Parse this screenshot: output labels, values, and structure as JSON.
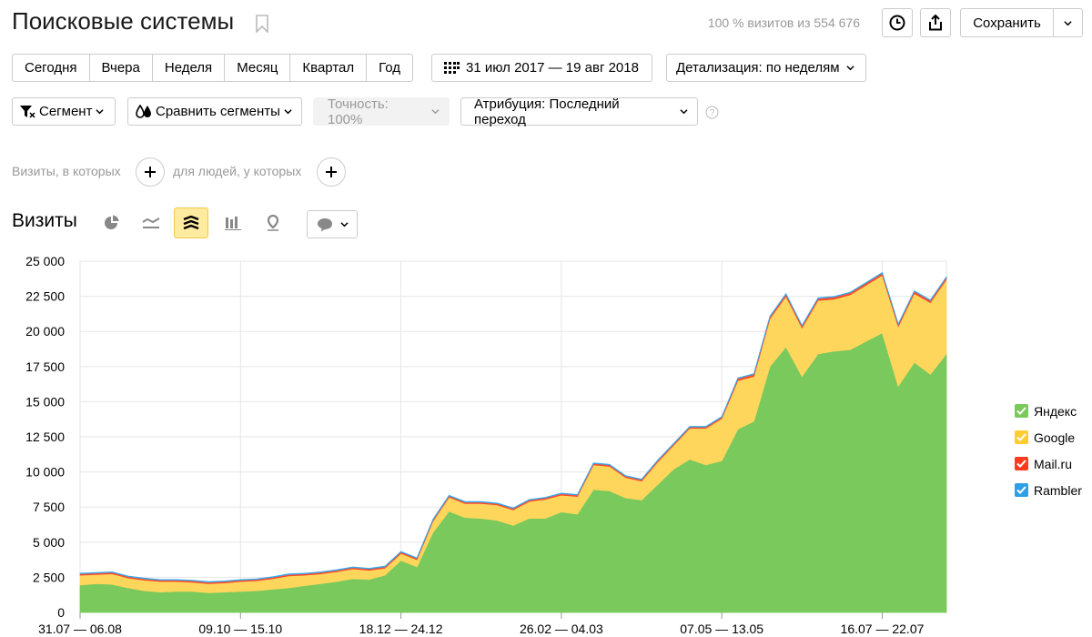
{
  "header": {
    "title": "Поисковые системы",
    "visits_info": "100 % визитов из 554 676",
    "save_label": "Сохранить"
  },
  "period_buttons": [
    "Сегодня",
    "Вчера",
    "Неделя",
    "Месяц",
    "Квартал",
    "Год"
  ],
  "date_range": "31 июл 2017 — 19 авг 2018",
  "detail": "Детализация: по неделям",
  "segment": "Сегмент",
  "compare_segments": "Сравнить сегменты",
  "accuracy": "Точность: 100%",
  "attribution": "Атрибуция: Последний переход",
  "filters": {
    "visits_which": "Визиты, в которых",
    "people_which": "для людей, у которых"
  },
  "chart_section_title": "Визиты",
  "colors": {
    "Яндекс": "#7ac95c",
    "Google": "#ffd65c",
    "Mail.ru": "#ff4b2b",
    "Rambler": "#36a9ee"
  },
  "chart_data": {
    "type": "area",
    "stacked": true,
    "title": "Визиты",
    "x_tick_labels": [
      "31.07 — 06.08",
      "09.10 — 15.10",
      "18.12 — 24.12",
      "26.02 — 04.03",
      "07.05 — 13.05",
      "16.07 — 22.07"
    ],
    "x_tick_index": [
      0,
      10,
      20,
      30,
      40,
      50
    ],
    "ylim": [
      0,
      25000
    ],
    "y_ticks": [
      "0",
      "2 500",
      "5 000",
      "7 500",
      "10 000",
      "12 500",
      "15 000",
      "17 500",
      "20 000",
      "22 500",
      "25 000"
    ],
    "grid": true,
    "legend_position": "right",
    "series": [
      {
        "name": "Яндекс",
        "color": "#7ac95c",
        "values": [
          1950,
          2050,
          2000,
          1750,
          1550,
          1450,
          1500,
          1500,
          1400,
          1450,
          1500,
          1550,
          1650,
          1750,
          1900,
          2050,
          2200,
          2400,
          2350,
          2650,
          3700,
          3250,
          5700,
          7200,
          6750,
          6700,
          6550,
          6200,
          6700,
          6700,
          7150,
          7000,
          8750,
          8650,
          8150,
          8000,
          9100,
          10200,
          10900,
          10500,
          10800,
          13050,
          13600,
          17500,
          18900,
          16800,
          18400,
          18600,
          18700,
          19300,
          19900,
          16100,
          17800,
          16950,
          18400
        ]
      },
      {
        "name": "Google",
        "color": "#ffd65c",
        "values": [
          700,
          650,
          750,
          700,
          750,
          750,
          700,
          650,
          650,
          650,
          700,
          700,
          750,
          850,
          750,
          700,
          700,
          700,
          650,
          500,
          500,
          500,
          800,
          1000,
          1000,
          1050,
          1100,
          1100,
          1200,
          1350,
          1200,
          1250,
          1750,
          1750,
          1450,
          1350,
          1600,
          1700,
          2200,
          2600,
          3000,
          3450,
          3200,
          3400,
          3600,
          3450,
          3800,
          3700,
          3900,
          4000,
          4100,
          4250,
          4900,
          5100,
          5300
        ]
      },
      {
        "name": "Mail.ru",
        "color": "#ff4b2b",
        "values": [
          100,
          100,
          100,
          100,
          100,
          100,
          100,
          100,
          100,
          100,
          100,
          100,
          100,
          100,
          100,
          100,
          100,
          100,
          100,
          100,
          100,
          100,
          100,
          100,
          100,
          100,
          100,
          100,
          100,
          100,
          100,
          100,
          100,
          100,
          100,
          100,
          100,
          100,
          100,
          100,
          100,
          150,
          150,
          150,
          150,
          150,
          150,
          150,
          150,
          150,
          150,
          150,
          150,
          150,
          150
        ]
      },
      {
        "name": "Rambler",
        "color": "#36a9ee",
        "values": [
          40,
          40,
          40,
          40,
          40,
          40,
          40,
          40,
          40,
          40,
          40,
          40,
          40,
          40,
          40,
          40,
          40,
          40,
          40,
          40,
          40,
          40,
          40,
          40,
          40,
          40,
          40,
          40,
          40,
          40,
          40,
          40,
          40,
          40,
          40,
          40,
          40,
          40,
          40,
          40,
          40,
          40,
          40,
          40,
          40,
          40,
          40,
          40,
          40,
          40,
          40,
          40,
          40,
          40,
          40
        ]
      }
    ]
  }
}
